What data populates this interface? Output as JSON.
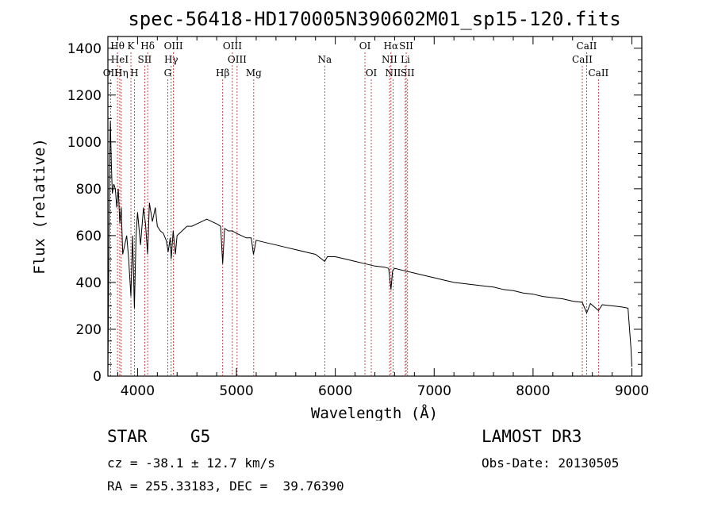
{
  "chart_data": {
    "type": "line",
    "title": "spec-56418-HD170005N390602M01_sp15-120.fits",
    "xlabel": "Wavelength (Å)",
    "ylabel": "Flux (relative)",
    "xlim": [
      3700,
      9100
    ],
    "ylim": [
      0,
      1450
    ],
    "x_ticks": [
      4000,
      5000,
      6000,
      7000,
      8000,
      9000
    ],
    "y_ticks": [
      0,
      200,
      400,
      600,
      800,
      1000,
      1200,
      1400
    ],
    "series": [
      {
        "name": "flux",
        "x": [
          3700,
          3715,
          3725,
          3735,
          3745,
          3760,
          3775,
          3790,
          3805,
          3820,
          3835,
          3850,
          3870,
          3890,
          3910,
          3933,
          3950,
          3968,
          3985,
          4000,
          4030,
          4060,
          4080,
          4102,
          4120,
          4150,
          4180,
          4200,
          4230,
          4260,
          4290,
          4310,
          4330,
          4340,
          4360,
          4383,
          4400,
          4450,
          4500,
          4550,
          4600,
          4650,
          4700,
          4750,
          4800,
          4840,
          4861,
          4880,
          4920,
          4960,
          5000,
          5050,
          5100,
          5150,
          5172,
          5200,
          5300,
          5400,
          5500,
          5600,
          5700,
          5800,
          5893,
          5920,
          6000,
          6100,
          6200,
          6300,
          6400,
          6500,
          6540,
          6563,
          6580,
          6600,
          6700,
          6800,
          6900,
          7000,
          7100,
          7200,
          7300,
          7400,
          7500,
          7600,
          7700,
          7800,
          7900,
          8000,
          8100,
          8200,
          8300,
          8400,
          8498,
          8542,
          8580,
          8662,
          8700,
          8800,
          8900,
          8960,
          8990,
          9000
        ],
        "values": [
          0,
          820,
          1090,
          900,
          780,
          820,
          800,
          720,
          800,
          650,
          720,
          520,
          560,
          600,
          500,
          340,
          600,
          290,
          600,
          700,
          560,
          720,
          650,
          520,
          740,
          660,
          720,
          640,
          620,
          610,
          580,
          530,
          590,
          500,
          620,
          520,
          600,
          620,
          640,
          640,
          650,
          660,
          670,
          660,
          650,
          640,
          480,
          630,
          620,
          620,
          610,
          600,
          590,
          590,
          520,
          580,
          570,
          560,
          550,
          540,
          530,
          520,
          490,
          510,
          510,
          500,
          490,
          480,
          470,
          465,
          460,
          370,
          450,
          460,
          450,
          440,
          430,
          420,
          410,
          400,
          395,
          390,
          385,
          380,
          370,
          365,
          355,
          350,
          340,
          335,
          330,
          320,
          315,
          270,
          310,
          280,
          305,
          300,
          295,
          290,
          120,
          40
        ]
      }
    ],
    "lines": [
      {
        "label": "OII",
        "wave": 3727,
        "row": 3
      },
      {
        "label": "Hθ",
        "wave": 3797,
        "row": 1
      },
      {
        "label": "HeI",
        "wave": 3820,
        "row": 2
      },
      {
        "label": "Hη",
        "wave": 3835,
        "row": 3
      },
      {
        "label": "K",
        "wave": 3933,
        "row": 1
      },
      {
        "label": "SII",
        "wave": 4072,
        "row": 2
      },
      {
        "label": "H",
        "wave": 3968,
        "row": 3
      },
      {
        "label": "Hδ",
        "wave": 4102,
        "row": 1
      },
      {
        "label": "OIII",
        "wave": 4363,
        "row": 1
      },
      {
        "label": "Hγ",
        "wave": 4340,
        "row": 2
      },
      {
        "label": "G",
        "wave": 4305,
        "row": 3
      },
      {
        "label": "Hβ",
        "wave": 4861,
        "row": 3
      },
      {
        "label": "OIII",
        "wave": 4959,
        "row": 1
      },
      {
        "label": "OIII",
        "wave": 5007,
        "row": 2
      },
      {
        "label": "Mg",
        "wave": 5175,
        "row": 3
      },
      {
        "label": "Na",
        "wave": 5893,
        "row": 2
      },
      {
        "label": "OI",
        "wave": 6300,
        "row": 1
      },
      {
        "label": "OI",
        "wave": 6364,
        "row": 3
      },
      {
        "label": "Hα",
        "wave": 6563,
        "row": 1
      },
      {
        "label": "NII",
        "wave": 6548,
        "row": 2
      },
      {
        "label": "NII",
        "wave": 6584,
        "row": 3
      },
      {
        "label": "SII",
        "wave": 6717,
        "row": 1
      },
      {
        "label": "Li",
        "wave": 6708,
        "row": 2
      },
      {
        "label": "SII",
        "wave": 6731,
        "row": 3
      },
      {
        "label": "CaII",
        "wave": 8542,
        "row": 1
      },
      {
        "label": "CaII",
        "wave": 8498,
        "row": 2
      },
      {
        "label": "CaII",
        "wave": 8662,
        "row": 3
      }
    ]
  },
  "info": {
    "object_class": "STAR",
    "subclass": "G5",
    "survey": "LAMOST DR3",
    "redshift": "cz = -38.1 ± 12.7 km/s",
    "obs_date": "Obs-Date: 20130505",
    "coords": "RA = 255.33183, DEC =  39.76390"
  },
  "colors": {
    "line_marker": "#b22222",
    "spectrum": "#000000"
  }
}
